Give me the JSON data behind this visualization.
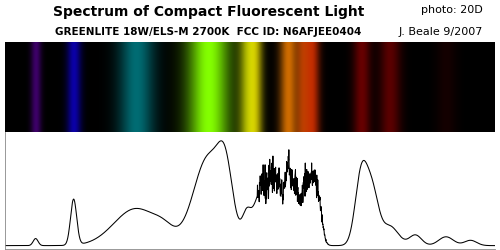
{
  "title": "Spectrum of Compact Fluorescent Light",
  "subtitle": "GREENLITE 18W/ELS-M 2700K  FCC ID: N6AFJEE0404",
  "photo_credit": "photo: 20D",
  "author": "J. Beale 9/2007",
  "title_fontsize": 10,
  "subtitle_fontsize": 7.5,
  "credit_fontsize": 8,
  "bg_color": "#ffffff",
  "spectrum_bg": "#000000",
  "emission_lines": [
    {
      "wl": 405,
      "intensity": 0.55,
      "sigma": 3
    },
    {
      "wl": 436,
      "intensity": 0.65,
      "sigma": 4
    },
    {
      "wl": 487,
      "intensity": 0.45,
      "sigma": 10
    },
    {
      "wl": 546,
      "intensity": 1.0,
      "sigma": 12
    },
    {
      "wl": 578,
      "intensity": 0.65,
      "sigma": 5
    },
    {
      "wl": 585,
      "intensity": 0.5,
      "sigma": 4
    },
    {
      "wl": 611,
      "intensity": 0.8,
      "sigma": 5
    },
    {
      "wl": 623,
      "intensity": 0.6,
      "sigma": 4
    },
    {
      "wl": 631,
      "intensity": 0.65,
      "sigma": 4
    },
    {
      "wl": 671,
      "intensity": 0.4,
      "sigma": 5
    },
    {
      "wl": 694,
      "intensity": 0.35,
      "sigma": 6
    },
    {
      "wl": 740,
      "intensity": 0.12,
      "sigma": 6
    }
  ],
  "graph_peaks": [
    {
      "wl": 405,
      "amp": 0.08,
      "sigma": 2
    },
    {
      "wl": 436,
      "amp": 0.52,
      "sigma": 2.5
    },
    {
      "wl": 487,
      "amp": 0.42,
      "sigma": 18
    },
    {
      "wl": 510,
      "amp": 0.1,
      "sigma": 8
    },
    {
      "wl": 546,
      "amp": 1.0,
      "sigma": 12
    },
    {
      "wl": 560,
      "amp": 0.6,
      "sigma": 6
    },
    {
      "wl": 578,
      "amp": 0.38,
      "sigma": 4
    },
    {
      "wl": 585,
      "amp": 0.3,
      "sigma": 3
    },
    {
      "wl": 590,
      "amp": 0.55,
      "sigma": 3
    },
    {
      "wl": 597,
      "amp": 0.62,
      "sigma": 3
    },
    {
      "wl": 603,
      "amp": 0.55,
      "sigma": 3
    },
    {
      "wl": 611,
      "amp": 0.75,
      "sigma": 3
    },
    {
      "wl": 617,
      "amp": 0.6,
      "sigma": 3
    },
    {
      "wl": 625,
      "amp": 0.65,
      "sigma": 3
    },
    {
      "wl": 631,
      "amp": 0.58,
      "sigma": 3
    },
    {
      "wl": 636,
      "amp": 0.45,
      "sigma": 3
    },
    {
      "wl": 671,
      "amp": 0.82,
      "sigma": 5
    },
    {
      "wl": 680,
      "amp": 0.55,
      "sigma": 5
    },
    {
      "wl": 694,
      "amp": 0.22,
      "sigma": 7
    },
    {
      "wl": 715,
      "amp": 0.12,
      "sigma": 5
    },
    {
      "wl": 740,
      "amp": 0.1,
      "sigma": 6
    },
    {
      "wl": 760,
      "amp": 0.06,
      "sigma": 5
    }
  ],
  "wl_min": 380,
  "wl_max": 780
}
